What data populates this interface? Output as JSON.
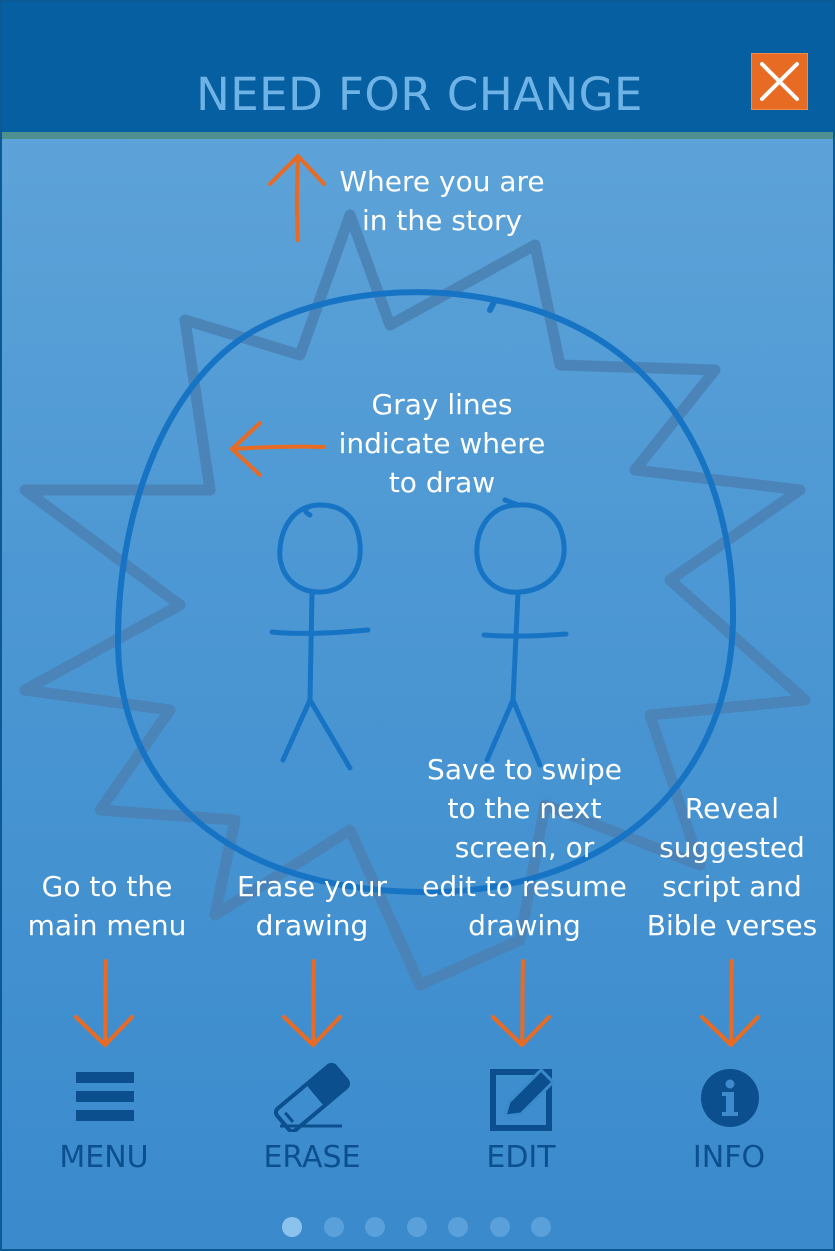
{
  "header": {
    "title": "NEED FOR CHANGE",
    "close_icon": "close-x-icon"
  },
  "annotations": {
    "story_position": "Where you are\nin the story",
    "gray_lines": "Gray lines\nindicate where\nto draw",
    "menu": "Go to the\nmain menu",
    "erase": "Erase your\ndrawing",
    "save_edit": "Save to swipe\nto the next\nscreen, or\nedit to resume\ndrawing",
    "info": "Reveal\nsuggested\nscript and\nBible verses"
  },
  "toolbar": {
    "menu_label": "MENU",
    "erase_label": "ERASE",
    "edit_label": "EDIT",
    "info_label": "INFO"
  },
  "pager": {
    "total": 7,
    "current": 1
  },
  "colors": {
    "header": "#065fa0",
    "accent": "#e86b24",
    "title": "#6fb3e6",
    "toolbar": "#0b4f8e"
  }
}
